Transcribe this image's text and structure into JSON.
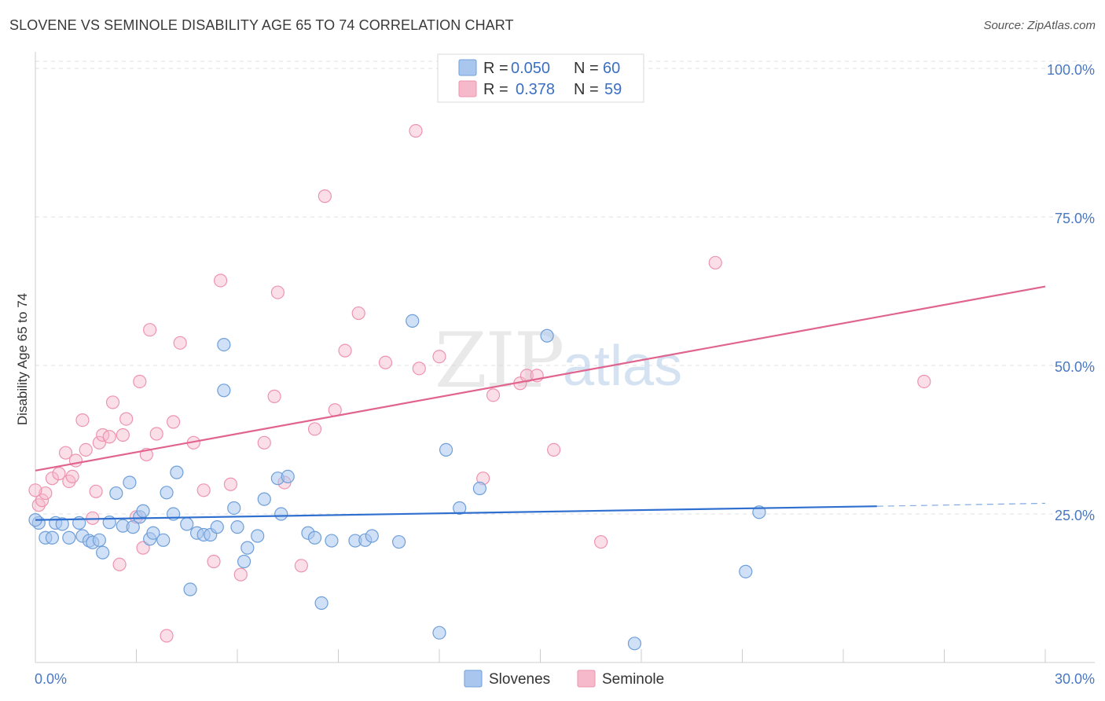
{
  "title": "SLOVENE VS SEMINOLE DISABILITY AGE 65 TO 74 CORRELATION CHART",
  "source": "Source: ZipAtlas.com",
  "watermark": {
    "zip": "ZIP",
    "atlas": "atlas"
  },
  "legend": {
    "rows": [
      {
        "r_label": "R =",
        "r_value": "0.050",
        "n_label": "N =",
        "n_value": "60"
      },
      {
        "r_label": "R =",
        "r_value": "0.378",
        "n_label": "N =",
        "n_value": "59"
      }
    ]
  },
  "bottom_legend": [
    "Slovenes",
    "Seminole"
  ],
  "colors": {
    "slovenes_fill": "#a9c7ee",
    "slovenes_stroke": "#6e9fd9",
    "slovenes_line": "#2f6fcf",
    "seminole_fill": "#f6b9cc",
    "seminole_stroke": "#ee93ae",
    "seminole_line": "#e0648e",
    "tick_text": "#4a78c2",
    "grid": "#e0e0e0"
  },
  "chart_data": {
    "type": "scatter",
    "title": "SLOVENE VS SEMINOLE DISABILITY AGE 65 TO 74 CORRELATION CHART",
    "xlabel": "",
    "ylabel": "Disability Age 65 to 74",
    "xlim": [
      0,
      30
    ],
    "ylim": [
      0,
      102
    ],
    "x_tick_labels": [
      "0.0%",
      "30.0%"
    ],
    "y_ticks": [
      25,
      50,
      75,
      100
    ],
    "y_tick_labels": [
      "25.0%",
      "50.0%",
      "75.0%",
      "100.0%"
    ],
    "series": [
      {
        "name": "Slovenes",
        "R": 0.05,
        "N": 60,
        "trend": {
          "x0": 0,
          "y0": 24.0,
          "x1": 25.0,
          "y1": 26.3,
          "dash_to_x": 30,
          "dash_to_y": 26.8
        },
        "points": [
          [
            0.1,
            23.5
          ],
          [
            0.3,
            21.0
          ],
          [
            0.5,
            21.0
          ],
          [
            0.6,
            23.5
          ],
          [
            0.8,
            23.3
          ],
          [
            1.0,
            21.0
          ],
          [
            1.3,
            23.5
          ],
          [
            1.4,
            21.3
          ],
          [
            1.6,
            20.5
          ],
          [
            1.7,
            20.2
          ],
          [
            1.9,
            20.6
          ],
          [
            2.0,
            18.5
          ],
          [
            2.2,
            23.6
          ],
          [
            2.4,
            28.5
          ],
          [
            2.6,
            23.0
          ],
          [
            2.8,
            30.3
          ],
          [
            2.9,
            22.8
          ],
          [
            3.1,
            24.5
          ],
          [
            3.2,
            25.5
          ],
          [
            3.4,
            20.8
          ],
          [
            3.5,
            21.8
          ],
          [
            3.8,
            20.6
          ],
          [
            3.9,
            28.6
          ],
          [
            4.1,
            25.0
          ],
          [
            4.2,
            32.0
          ],
          [
            4.5,
            23.3
          ],
          [
            4.6,
            12.3
          ],
          [
            4.8,
            21.8
          ],
          [
            5.0,
            21.5
          ],
          [
            5.2,
            21.5
          ],
          [
            5.4,
            22.8
          ],
          [
            5.6,
            53.5
          ],
          [
            5.6,
            45.8
          ],
          [
            5.9,
            26.0
          ],
          [
            6.0,
            22.8
          ],
          [
            6.2,
            17.0
          ],
          [
            6.3,
            19.3
          ],
          [
            6.6,
            21.3
          ],
          [
            6.8,
            27.5
          ],
          [
            7.2,
            31.0
          ],
          [
            7.3,
            25.0
          ],
          [
            7.5,
            31.3
          ],
          [
            8.1,
            21.8
          ],
          [
            8.3,
            21.0
          ],
          [
            8.5,
            10.0
          ],
          [
            8.8,
            20.5
          ],
          [
            9.5,
            20.5
          ],
          [
            9.8,
            20.6
          ],
          [
            10.0,
            21.3
          ],
          [
            10.8,
            20.3
          ],
          [
            11.2,
            57.5
          ],
          [
            12.0,
            5.0
          ],
          [
            12.2,
            35.8
          ],
          [
            12.6,
            26.0
          ],
          [
            13.2,
            29.3
          ],
          [
            15.2,
            55.0
          ],
          [
            17.8,
            3.2
          ],
          [
            21.1,
            15.3
          ],
          [
            21.5,
            25.3
          ],
          [
            0.0,
            24.0
          ]
        ]
      },
      {
        "name": "Seminole",
        "R": 0.378,
        "N": 59,
        "trend": {
          "x0": 0,
          "y0": 32.3,
          "x1": 30,
          "y1": 63.3
        },
        "points": [
          [
            0.1,
            26.5
          ],
          [
            0.2,
            27.3
          ],
          [
            0.3,
            28.5
          ],
          [
            0.5,
            31.0
          ],
          [
            0.7,
            31.8
          ],
          [
            0.9,
            35.3
          ],
          [
            1.0,
            30.5
          ],
          [
            1.1,
            31.3
          ],
          [
            1.2,
            34.0
          ],
          [
            1.4,
            40.8
          ],
          [
            1.5,
            35.8
          ],
          [
            1.7,
            24.3
          ],
          [
            1.8,
            28.8
          ],
          [
            1.9,
            37.0
          ],
          [
            2.0,
            38.3
          ],
          [
            2.2,
            38.0
          ],
          [
            2.3,
            43.8
          ],
          [
            2.5,
            16.5
          ],
          [
            2.6,
            38.3
          ],
          [
            2.7,
            41.0
          ],
          [
            3.0,
            24.5
          ],
          [
            3.1,
            47.3
          ],
          [
            3.2,
            19.3
          ],
          [
            3.3,
            35.0
          ],
          [
            3.4,
            56.0
          ],
          [
            3.6,
            38.5
          ],
          [
            3.9,
            4.5
          ],
          [
            4.1,
            40.5
          ],
          [
            4.3,
            53.8
          ],
          [
            4.7,
            37.0
          ],
          [
            5.0,
            29.0
          ],
          [
            5.3,
            17.0
          ],
          [
            5.5,
            64.3
          ],
          [
            5.8,
            30.0
          ],
          [
            6.1,
            14.8
          ],
          [
            6.8,
            37.0
          ],
          [
            7.1,
            44.8
          ],
          [
            7.2,
            62.3
          ],
          [
            7.4,
            30.3
          ],
          [
            7.9,
            16.3
          ],
          [
            8.3,
            39.3
          ],
          [
            8.6,
            78.5
          ],
          [
            8.9,
            42.5
          ],
          [
            9.2,
            52.5
          ],
          [
            9.6,
            58.8
          ],
          [
            10.4,
            50.5
          ],
          [
            11.3,
            89.5
          ],
          [
            11.4,
            49.5
          ],
          [
            12.0,
            51.5
          ],
          [
            13.3,
            31.0
          ],
          [
            13.6,
            45.0
          ],
          [
            14.4,
            47.0
          ],
          [
            14.6,
            48.3
          ],
          [
            14.9,
            48.3
          ],
          [
            15.4,
            35.8
          ],
          [
            16.8,
            20.3
          ],
          [
            20.2,
            67.3
          ],
          [
            26.4,
            47.3
          ],
          [
            0.0,
            29.0
          ]
        ]
      }
    ]
  }
}
